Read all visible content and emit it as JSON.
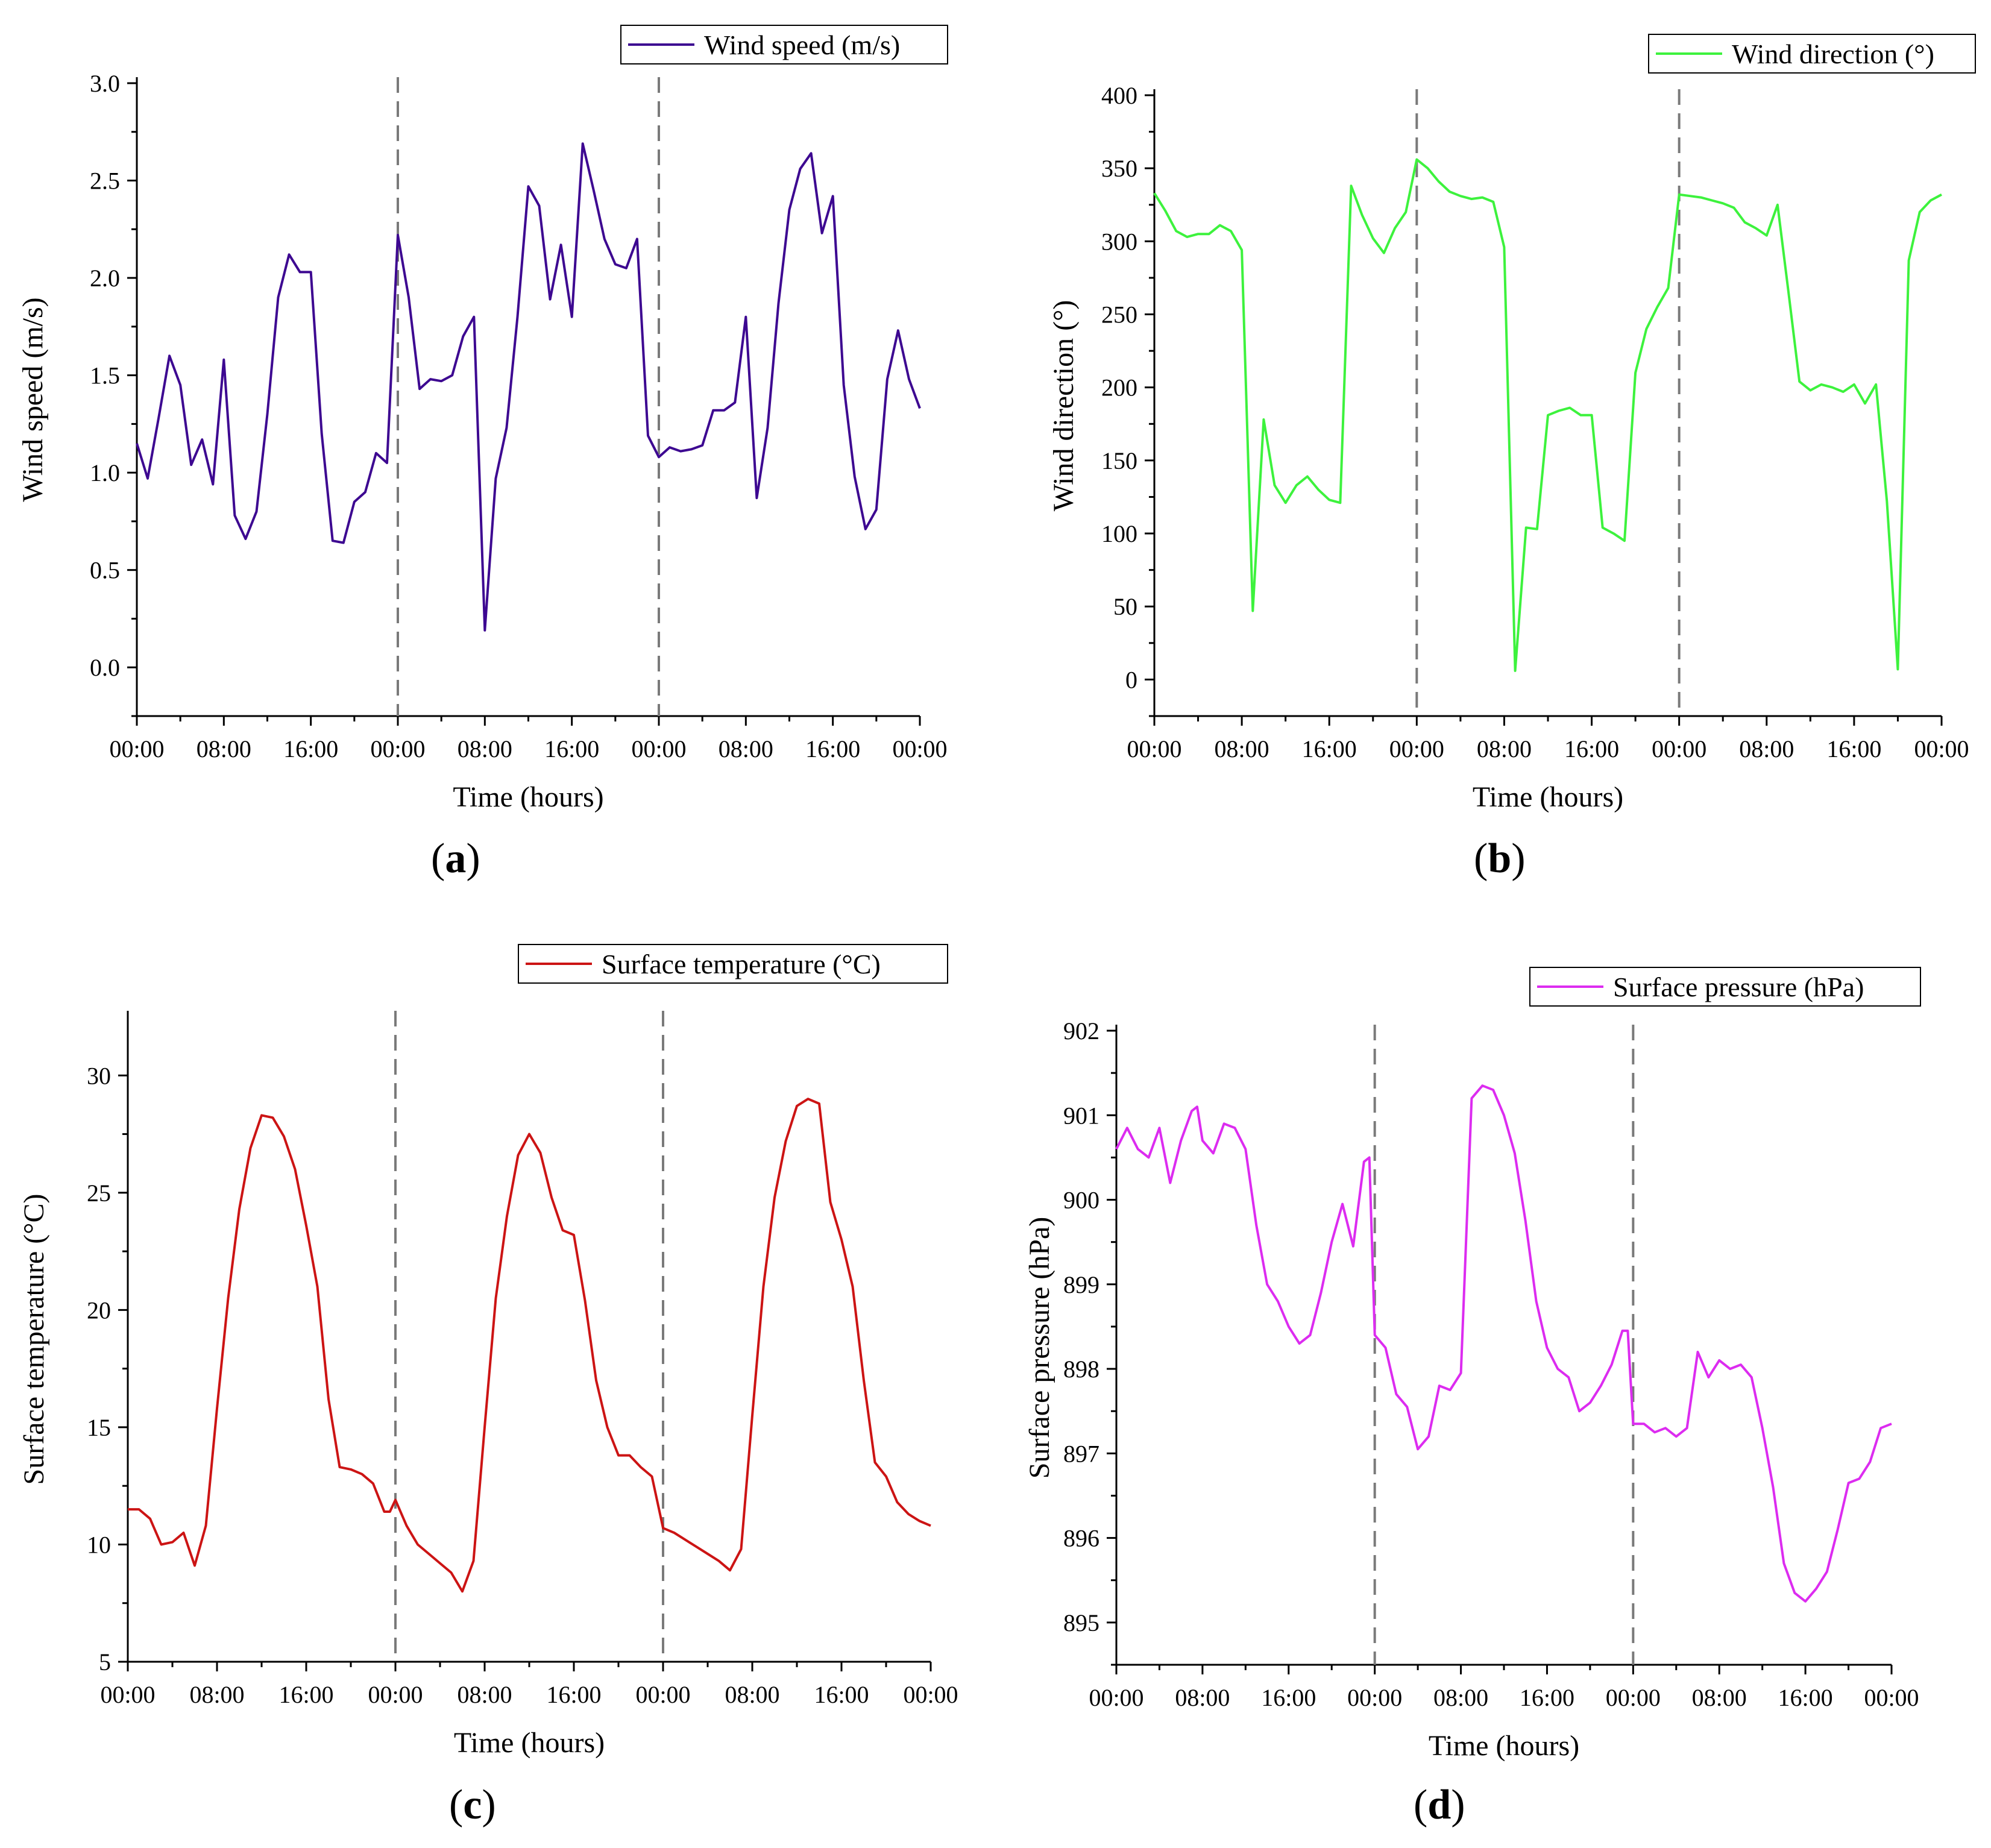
{
  "chart_data": [
    {
      "id": "a",
      "type": "line",
      "panel_label": "a",
      "title": "",
      "xlabel": "Time (hours)",
      "ylabel": "Wind speed (m/s)",
      "legend": "Wind speed (m/s)",
      "legend_position": "top-right",
      "color": "#3d0891",
      "grid": false,
      "xlim": [
        0,
        72
      ],
      "ylim": [
        -0.25,
        3.0
      ],
      "yticks": [
        0,
        0.5,
        1,
        1.5,
        2,
        2.5,
        3
      ],
      "ytick_labels": [
        "0.0",
        "0.5",
        "1.0",
        "1.5",
        "2.0",
        "2.5",
        "3.0"
      ],
      "xticks": [
        0,
        8,
        16,
        24,
        32,
        40,
        48,
        56,
        64,
        72
      ],
      "xtick_labels": [
        "00:00",
        "08:00",
        "16:00",
        "00:00",
        "08:00",
        "16:00",
        "00:00",
        "08:00",
        "16:00",
        "00:00"
      ],
      "day_separators": [
        24,
        48
      ],
      "x": [
        0,
        1,
        2,
        3,
        4,
        5,
        6,
        7,
        8,
        9,
        10,
        11,
        12,
        13,
        14,
        15,
        16,
        17,
        18,
        19,
        20,
        21,
        22,
        23,
        24,
        25,
        26,
        27,
        28,
        29,
        30,
        31,
        32,
        33,
        34,
        35,
        36,
        37,
        38,
        39,
        40,
        41,
        42,
        43,
        44,
        45,
        46,
        47,
        48,
        49,
        50,
        51,
        52,
        53,
        54,
        55,
        56,
        57,
        58,
        59,
        60,
        61,
        62,
        63,
        64,
        65,
        66,
        67,
        68,
        69,
        70,
        71,
        72
      ],
      "y": [
        1.15,
        0.97,
        1.28,
        1.6,
        1.45,
        1.04,
        1.17,
        0.94,
        1.58,
        0.78,
        0.66,
        0.8,
        1.3,
        1.9,
        2.12,
        2.03,
        2.03,
        1.2,
        0.65,
        0.64,
        0.85,
        0.9,
        1.1,
        1.05,
        2.22,
        1.9,
        1.43,
        1.48,
        1.47,
        1.5,
        1.7,
        1.8,
        0.19,
        0.97,
        1.23,
        1.8,
        2.47,
        2.37,
        1.89,
        2.17,
        1.8,
        2.69,
        2.45,
        2.2,
        2.07,
        2.05,
        2.2,
        1.19,
        1.08,
        1.13,
        1.11,
        1.12,
        1.14,
        1.32,
        1.32,
        1.36,
        1.8,
        0.87,
        1.23,
        1.87,
        2.35,
        2.56,
        2.64,
        2.23,
        2.42,
        1.45,
        0.98,
        0.71,
        0.81,
        1.48,
        1.73,
        1.48,
        1.33
      ]
    },
    {
      "id": "b",
      "type": "line",
      "panel_label": "b",
      "title": "",
      "xlabel": "Time (hours)",
      "ylabel": "Wind direction (°)",
      "legend": "Wind direction (°)",
      "legend_position": "top-right",
      "color": "#3df23d",
      "grid": false,
      "xlim": [
        0,
        72
      ],
      "ylim": [
        -25,
        400
      ],
      "yticks": [
        0,
        50,
        100,
        150,
        200,
        250,
        300,
        350,
        400
      ],
      "ytick_labels": [
        "0",
        "50",
        "100",
        "150",
        "200",
        "250",
        "300",
        "350",
        "400"
      ],
      "xticks": [
        0,
        8,
        16,
        24,
        32,
        40,
        48,
        56,
        64,
        72
      ],
      "xtick_labels": [
        "00:00",
        "08:00",
        "16:00",
        "00:00",
        "08:00",
        "16:00",
        "00:00",
        "08:00",
        "16:00",
        "00:00"
      ],
      "day_separators": [
        24,
        48
      ],
      "x": [
        0,
        1,
        2,
        3,
        4,
        5,
        6,
        7,
        8,
        9,
        10,
        11,
        12,
        13,
        14,
        15,
        16,
        17,
        18,
        19,
        20,
        21,
        22,
        23,
        24,
        25,
        26,
        27,
        28,
        29,
        30,
        31,
        32,
        33,
        34,
        35,
        36,
        37,
        38,
        39,
        40,
        41,
        42,
        43,
        44,
        45,
        46,
        47,
        48,
        49,
        50,
        51,
        52,
        53,
        54,
        55,
        56,
        57,
        58,
        59,
        60,
        61,
        62,
        63,
        64,
        65,
        66,
        67,
        68,
        69,
        70,
        71,
        72
      ],
      "y": [
        333,
        321,
        307,
        303,
        305,
        305,
        311,
        307,
        294,
        47,
        178,
        133,
        121,
        133,
        139,
        130,
        123,
        121,
        338,
        318,
        302,
        292,
        309,
        320,
        356,
        350,
        341,
        334,
        331,
        329,
        330,
        327,
        296,
        6,
        104,
        103,
        181,
        184,
        186,
        181,
        181,
        104,
        100,
        95,
        210,
        240,
        255,
        268,
        332,
        331,
        330,
        328,
        326,
        323,
        313,
        309,
        304,
        325,
        265,
        204,
        198,
        202,
        200,
        197,
        202,
        189,
        202,
        122,
        7,
        287,
        320,
        328,
        332
      ]
    },
    {
      "id": "c",
      "type": "line",
      "panel_label": "c",
      "title": "",
      "xlabel": "Time (hours)",
      "ylabel": "Surface temperature (°C)",
      "legend": "Surface temperature (°C)",
      "legend_position": "top-right",
      "color": "#cc1414",
      "grid": false,
      "xlim": [
        0,
        72
      ],
      "ylim": [
        5,
        32.5
      ],
      "yticks": [
        5,
        10,
        15,
        20,
        25,
        30
      ],
      "ytick_labels": [
        "5",
        "10",
        "15",
        "20",
        "25",
        "30"
      ],
      "xticks": [
        0,
        8,
        16,
        24,
        32,
        40,
        48,
        56,
        64,
        72
      ],
      "xtick_labels": [
        "00:00",
        "08:00",
        "16:00",
        "00:00",
        "08:00",
        "16:00",
        "00:00",
        "08:00",
        "16:00",
        "00:00"
      ],
      "day_separators": [
        24,
        48
      ],
      "x": [
        0,
        1,
        2,
        3,
        4,
        5,
        6,
        7,
        8,
        9,
        10,
        11,
        12,
        13,
        14,
        15,
        16,
        17,
        18,
        19,
        20,
        21,
        22,
        23,
        23.5,
        24,
        25,
        26,
        27,
        28,
        29,
        30,
        31,
        32,
        33,
        34,
        35,
        36,
        37,
        38,
        39,
        40,
        41,
        42,
        43,
        44,
        45,
        46,
        47,
        48,
        49,
        50,
        51,
        52,
        53,
        54,
        55,
        56,
        57,
        58,
        59,
        60,
        61,
        62,
        63,
        64,
        65,
        66,
        67,
        68,
        69,
        70,
        71,
        72
      ],
      "y": [
        11.5,
        11.5,
        11.1,
        10.0,
        10.1,
        10.5,
        9.1,
        10.8,
        15.8,
        20.5,
        24.3,
        26.9,
        28.3,
        28.2,
        27.4,
        26.0,
        23.6,
        21.0,
        16.2,
        13.3,
        13.2,
        13.0,
        12.6,
        11.4,
        11.4,
        11.9,
        10.8,
        10.0,
        9.6,
        9.2,
        8.8,
        8.0,
        9.3,
        15.0,
        20.5,
        24.0,
        26.6,
        27.5,
        26.7,
        24.8,
        23.4,
        23.2,
        20.4,
        17.0,
        15.0,
        13.8,
        13.8,
        13.3,
        12.9,
        10.7,
        10.5,
        10.2,
        9.9,
        9.6,
        9.3,
        8.9,
        9.8,
        15.5,
        21.0,
        24.8,
        27.2,
        28.7,
        29.0,
        28.8,
        24.6,
        23.0,
        21.0,
        17.0,
        13.5,
        12.9,
        11.8,
        11.3,
        11.0,
        10.8
      ]
    },
    {
      "id": "d",
      "type": "line",
      "panel_label": "d",
      "title": "",
      "xlabel": "Time (hours)",
      "ylabel": "Surface pressure (hPa)",
      "legend": "Surface pressure (hPa)",
      "legend_position": "top-right",
      "color": "#dc2cf0",
      "grid": false,
      "xlim": [
        0,
        72
      ],
      "ylim": [
        894.5,
        902.0
      ],
      "yticks": [
        895,
        896,
        897,
        898,
        899,
        900,
        901,
        902
      ],
      "ytick_labels": [
        "895",
        "896",
        "897",
        "898",
        "899",
        "900",
        "901",
        "902"
      ],
      "xticks": [
        0,
        8,
        16,
        24,
        32,
        40,
        48,
        56,
        64,
        72
      ],
      "xtick_labels": [
        "00:00",
        "08:00",
        "16:00",
        "00:00",
        "08:00",
        "16:00",
        "00:00",
        "08:00",
        "16:00",
        "00:00"
      ],
      "day_separators": [
        24,
        48
      ],
      "x": [
        0,
        1,
        2,
        3,
        4,
        5,
        6,
        7,
        7.5,
        8,
        9,
        10,
        11,
        12,
        13,
        14,
        15,
        16,
        17,
        18,
        19,
        20,
        21,
        22,
        23,
        23.5,
        24,
        25,
        26,
        27,
        28,
        29,
        30,
        31,
        32,
        33,
        34,
        35,
        36,
        37,
        38,
        39,
        40,
        41,
        42,
        43,
        44,
        45,
        46,
        47,
        47.5,
        48,
        49,
        50,
        51,
        52,
        53,
        54,
        55,
        56,
        57,
        58,
        59,
        60,
        61,
        62,
        63,
        64,
        65,
        66,
        67,
        68,
        69,
        70,
        71,
        72
      ],
      "y": [
        900.6,
        900.85,
        900.6,
        900.5,
        900.85,
        900.2,
        900.7,
        901.05,
        901.1,
        900.7,
        900.55,
        900.9,
        900.85,
        900.6,
        899.7,
        899.0,
        898.8,
        898.5,
        898.3,
        898.4,
        898.9,
        899.5,
        899.95,
        899.45,
        900.45,
        900.5,
        898.4,
        898.25,
        897.7,
        897.55,
        897.05,
        897.2,
        897.8,
        897.75,
        897.95,
        901.2,
        901.35,
        901.3,
        901.0,
        900.55,
        899.75,
        898.8,
        898.25,
        898.0,
        897.9,
        897.5,
        897.6,
        897.8,
        898.05,
        898.45,
        898.45,
        897.35,
        897.35,
        897.25,
        897.3,
        897.2,
        897.3,
        898.2,
        897.9,
        898.1,
        898.0,
        898.05,
        897.9,
        897.3,
        896.6,
        895.7,
        895.35,
        895.25,
        895.4,
        895.6,
        896.1,
        896.65,
        896.7,
        896.9,
        897.3,
        897.35
      ]
    }
  ]
}
